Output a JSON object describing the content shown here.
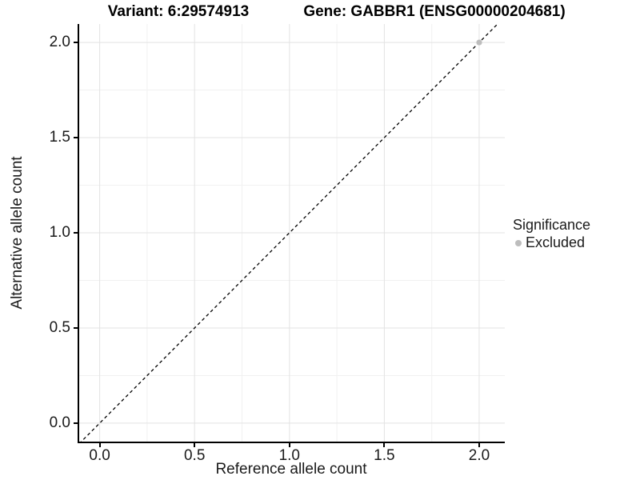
{
  "titles": {
    "left": "Variant: 6:29574913",
    "right": "Gene: GABBR1 (ENSG00000204681)"
  },
  "chart_data": {
    "type": "scatter",
    "xlabel": "Reference allele count",
    "ylabel": "Alternative allele count",
    "xlim": [
      -0.108,
      2.135
    ],
    "ylim": [
      -0.097,
      2.097
    ],
    "x_ticks": [
      0.0,
      0.5,
      1.0,
      1.5,
      2.0
    ],
    "y_ticks": [
      0.0,
      0.5,
      1.0,
      1.5,
      2.0
    ],
    "x_tick_labels": [
      "0.0",
      "0.5",
      "1.0",
      "1.5",
      "2.0"
    ],
    "y_tick_labels": [
      "0.0",
      "0.5",
      "1.0",
      "1.5",
      "2.0"
    ],
    "x_minor_ticks": [
      0.25,
      0.75,
      1.25,
      1.75
    ],
    "y_minor_ticks": [
      0.25,
      0.75,
      1.25,
      1.75
    ],
    "grid": true,
    "grid_major_color": "#e3e3e3",
    "grid_minor_color": "#f1f1f1",
    "reference_line": {
      "type": "abline",
      "slope": 1,
      "intercept": 0,
      "style": "dashed",
      "color": "#000000"
    },
    "series": [
      {
        "name": "Excluded",
        "color": "#bdbdbd",
        "points": [
          {
            "x": 2.0,
            "y": 2.0
          }
        ]
      }
    ],
    "legend": {
      "title": "Significance",
      "position": "right",
      "items": [
        {
          "label": "Excluded",
          "color": "#bdbdbd"
        }
      ]
    }
  }
}
